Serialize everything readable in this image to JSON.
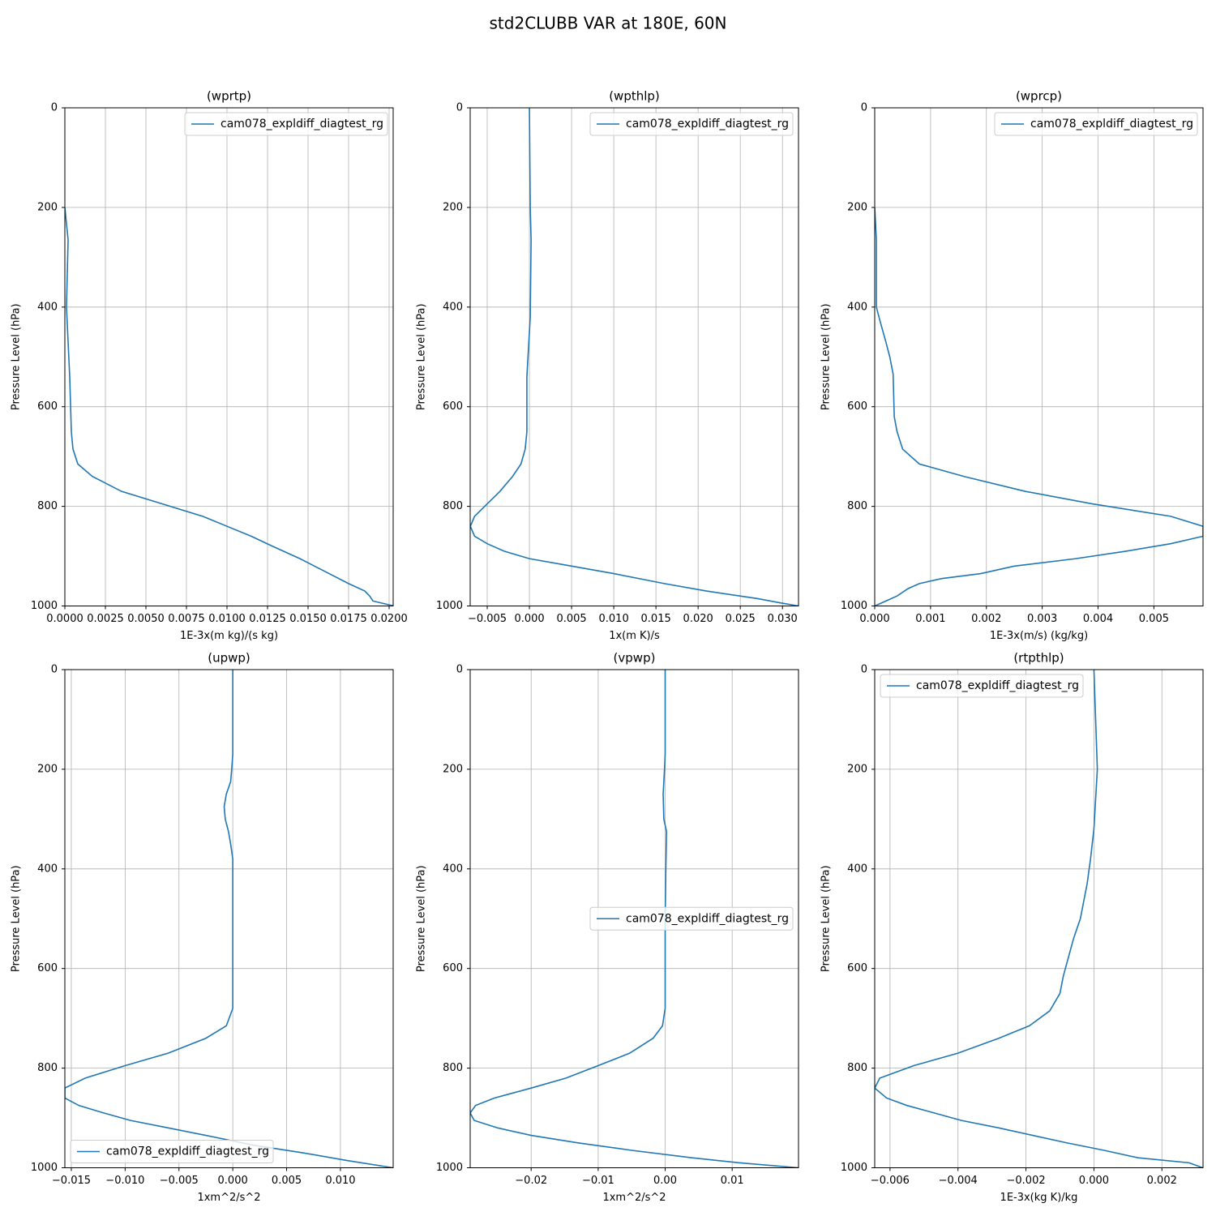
{
  "title": "std2CLUBB VAR at 180E, 60N",
  "chart_data": [
    {
      "type": "line",
      "title": "(wprtp)",
      "xlabel": "1E-3x(m kg)/(s kg)",
      "ylabel": "Pressure Level (hPa)",
      "grid": true,
      "legend": "upper right",
      "xlim": [
        0,
        0.02025
      ],
      "ylim": [
        1000,
        0
      ],
      "xticks": [
        {
          "value": 0,
          "label": "0.0000"
        },
        {
          "value": 0.0025,
          "label": "0.0025"
        },
        {
          "value": 0.005,
          "label": "0.0050"
        },
        {
          "value": 0.0075,
          "label": "0.0075"
        },
        {
          "value": 0.01,
          "label": "0.0100"
        },
        {
          "value": 0.0125,
          "label": "0.0125"
        },
        {
          "value": 0.015,
          "label": "0.0150"
        },
        {
          "value": 0.0175,
          "label": "0.0175"
        },
        {
          "value": 0.02,
          "label": "0.0200"
        }
      ],
      "yticks": [
        0,
        200,
        400,
        600,
        800,
        1000
      ],
      "y": [
        200,
        265,
        400,
        540,
        650,
        685,
        715,
        740,
        770,
        795,
        820,
        840,
        860,
        880,
        905,
        935,
        955,
        970,
        980,
        990,
        1000
      ],
      "series": [
        {
          "name": "cam078_expldiff_diagtest_rg",
          "color": "#1f77b4",
          "values": [
            0,
            0.0002,
            0.0001,
            0.0003,
            0.0004,
            0.0005,
            0.0008,
            0.0017,
            0.0035,
            0.006,
            0.0085,
            0.01,
            0.0115,
            0.0128,
            0.0145,
            0.0163,
            0.0175,
            0.0185,
            0.0188,
            0.019,
            0.0203
          ]
        }
      ]
    },
    {
      "type": "line",
      "title": "(wpthlp)",
      "xlabel": "1x(m K)/s",
      "ylabel": "Pressure Level (hPa)",
      "grid": true,
      "legend": "upper right",
      "xlim": [
        -0.00702,
        0.0319
      ],
      "ylim": [
        1000,
        0
      ],
      "xticks": [
        {
          "value": -0.005,
          "label": "−0.005"
        },
        {
          "value": 0,
          "label": "0.000"
        },
        {
          "value": 0.005,
          "label": "0.005"
        },
        {
          "value": 0.01,
          "label": "0.010"
        },
        {
          "value": 0.015,
          "label": "0.015"
        },
        {
          "value": 0.02,
          "label": "0.020"
        },
        {
          "value": 0.025,
          "label": "0.025"
        },
        {
          "value": 0.03,
          "label": "0.030"
        }
      ],
      "yticks": [
        0,
        200,
        400,
        600,
        800,
        1000
      ],
      "y": [
        0,
        200,
        265,
        420,
        540,
        650,
        685,
        715,
        740,
        770,
        795,
        820,
        840,
        860,
        875,
        890,
        905,
        920,
        935,
        955,
        970,
        985,
        993,
        1000
      ],
      "series": [
        {
          "name": "cam078_expldiff_diagtest_rg",
          "color": "#1f77b4",
          "values": [
            0,
            0.0001,
            0.0002,
            0.0001,
            -0.0003,
            -0.0003,
            -0.0005,
            -0.001,
            -0.002,
            -0.0035,
            -0.005,
            -0.0065,
            -0.007,
            -0.0065,
            -0.005,
            -0.003,
            0,
            0.005,
            0.01,
            0.016,
            0.021,
            0.027,
            0.0295,
            0.0319
          ]
        }
      ]
    },
    {
      "type": "line",
      "title": "(wprcp)",
      "xlabel": "1E-3x(m/s) (kg/kg)",
      "ylabel": "Pressure Level (hPa)",
      "grid": true,
      "legend": "upper right",
      "xlim": [
        0,
        0.00588
      ],
      "ylim": [
        1000,
        0
      ],
      "xticks": [
        {
          "value": 0,
          "label": "0.000"
        },
        {
          "value": 0.001,
          "label": "0.001"
        },
        {
          "value": 0.002,
          "label": "0.002"
        },
        {
          "value": 0.003,
          "label": "0.003"
        },
        {
          "value": 0.004,
          "label": "0.004"
        },
        {
          "value": 0.005,
          "label": "0.005"
        }
      ],
      "yticks": [
        0,
        200,
        400,
        600,
        800,
        1000
      ],
      "y": [
        200,
        265,
        400,
        430,
        470,
        500,
        535,
        620,
        650,
        685,
        715,
        740,
        770,
        795,
        820,
        840,
        860,
        875,
        890,
        905,
        920,
        935,
        945,
        955,
        965,
        980,
        990,
        1000
      ],
      "series": [
        {
          "name": "cam078_expldiff_diagtest_rg",
          "color": "#1f77b4",
          "values": [
            0,
            3e-05,
            3e-05,
            0.0001,
            0.0002,
            0.00027,
            0.00033,
            0.00035,
            0.0004,
            0.0005,
            0.0008,
            0.0016,
            0.0027,
            0.0039,
            0.0053,
            0.00588,
            0.00588,
            0.0053,
            0.0045,
            0.0036,
            0.0025,
            0.0019,
            0.0012,
            0.0008,
            0.0006,
            0.0004,
            0.0002,
            0
          ]
        }
      ]
    },
    {
      "type": "line",
      "title": "(upwp)",
      "xlabel": "1xm^2/s^2",
      "ylabel": "Pressure Level (hPa)",
      "grid": true,
      "legend": "lower left",
      "xlim": [
        -0.0156,
        0.0149
      ],
      "ylim": [
        1000,
        0
      ],
      "xticks": [
        {
          "value": -0.015,
          "label": "−0.015"
        },
        {
          "value": -0.01,
          "label": "−0.010"
        },
        {
          "value": -0.005,
          "label": "−0.005"
        },
        {
          "value": 0,
          "label": "0.000"
        },
        {
          "value": 0.005,
          "label": "0.005"
        },
        {
          "value": 0.01,
          "label": "0.010"
        }
      ],
      "yticks": [
        0,
        200,
        400,
        600,
        800,
        1000
      ],
      "y": [
        0,
        170,
        200,
        225,
        250,
        275,
        300,
        325,
        350,
        380,
        500,
        680,
        715,
        740,
        770,
        795,
        820,
        840,
        860,
        875,
        890,
        905,
        920,
        935,
        955,
        970,
        985,
        1000
      ],
      "series": [
        {
          "name": "cam078_expldiff_diagtest_rg",
          "color": "#1f77b4",
          "values": [
            0,
            0,
            -0.0001,
            -0.0002,
            -0.0006,
            -0.0008,
            -0.0007,
            -0.0004,
            -0.0002,
            0,
            0,
            0,
            -0.0006,
            -0.0025,
            -0.006,
            -0.01,
            -0.0137,
            -0.0156,
            -0.0156,
            -0.0143,
            -0.012,
            -0.0095,
            -0.006,
            -0.0025,
            0.002,
            0.0065,
            0.0105,
            0.0149
          ]
        }
      ]
    },
    {
      "type": "line",
      "title": "(vpwp)",
      "xlabel": "1xm^2/s^2",
      "ylabel": "Pressure Level (hPa)",
      "grid": true,
      "legend": "center right",
      "xlim": [
        -0.0291,
        0.0199
      ],
      "ylim": [
        1000,
        0
      ],
      "xticks": [
        {
          "value": -0.02,
          "label": "−0.02"
        },
        {
          "value": -0.01,
          "label": "−0.01"
        },
        {
          "value": 0,
          "label": "0.00"
        },
        {
          "value": 0.01,
          "label": "0.01"
        }
      ],
      "yticks": [
        0,
        200,
        400,
        600,
        800,
        1000
      ],
      "y": [
        0,
        170,
        200,
        250,
        300,
        325,
        400,
        500,
        680,
        715,
        740,
        770,
        795,
        820,
        840,
        860,
        875,
        890,
        905,
        920,
        935,
        950,
        965,
        980,
        990,
        1000
      ],
      "series": [
        {
          "name": "cam078_expldiff_diagtest_rg",
          "color": "#1f77b4",
          "values": [
            0,
            0,
            -0.0001,
            -0.0003,
            -0.0002,
            0.0002,
            0.0001,
            0,
            0,
            -0.0004,
            -0.0018,
            -0.0053,
            -0.01,
            -0.0148,
            -0.02,
            -0.0255,
            -0.0283,
            -0.0291,
            -0.0285,
            -0.025,
            -0.02,
            -0.013,
            -0.005,
            0.004,
            0.011,
            0.0199
          ]
        }
      ]
    },
    {
      "type": "line",
      "title": "(rtpthlp)",
      "xlabel": "1E-3x(kg K)/kg",
      "ylabel": "Pressure Level (hPa)",
      "grid": true,
      "legend": "upper left",
      "xlim": [
        -0.00645,
        0.00321
      ],
      "ylim": [
        1000,
        0
      ],
      "xticks": [
        {
          "value": -0.006,
          "label": "−0.006"
        },
        {
          "value": -0.004,
          "label": "−0.004"
        },
        {
          "value": -0.002,
          "label": "−0.002"
        },
        {
          "value": 0,
          "label": "0.000"
        },
        {
          "value": 0.002,
          "label": "0.002"
        }
      ],
      "yticks": [
        0,
        200,
        400,
        600,
        800,
        1000
      ],
      "y": [
        0,
        200,
        320,
        380,
        430,
        500,
        540,
        615,
        650,
        685,
        715,
        740,
        770,
        795,
        820,
        840,
        860,
        875,
        890,
        905,
        920,
        935,
        950,
        965,
        980,
        990,
        1000
      ],
      "series": [
        {
          "name": "cam078_expldiff_diagtest_rg",
          "color": "#1f77b4",
          "values": [
            0,
            0.0001,
            0,
            -0.0001,
            -0.0002,
            -0.0004,
            -0.0006,
            -0.0009,
            -0.001,
            -0.0013,
            -0.0019,
            -0.0028,
            -0.004,
            -0.0053,
            -0.0063,
            -0.00645,
            -0.0061,
            -0.0055,
            -0.0047,
            -0.0039,
            -0.0028,
            -0.0018,
            -0.0008,
            0.0003,
            0.0013,
            0.0028,
            0.0032
          ]
        }
      ]
    }
  ]
}
